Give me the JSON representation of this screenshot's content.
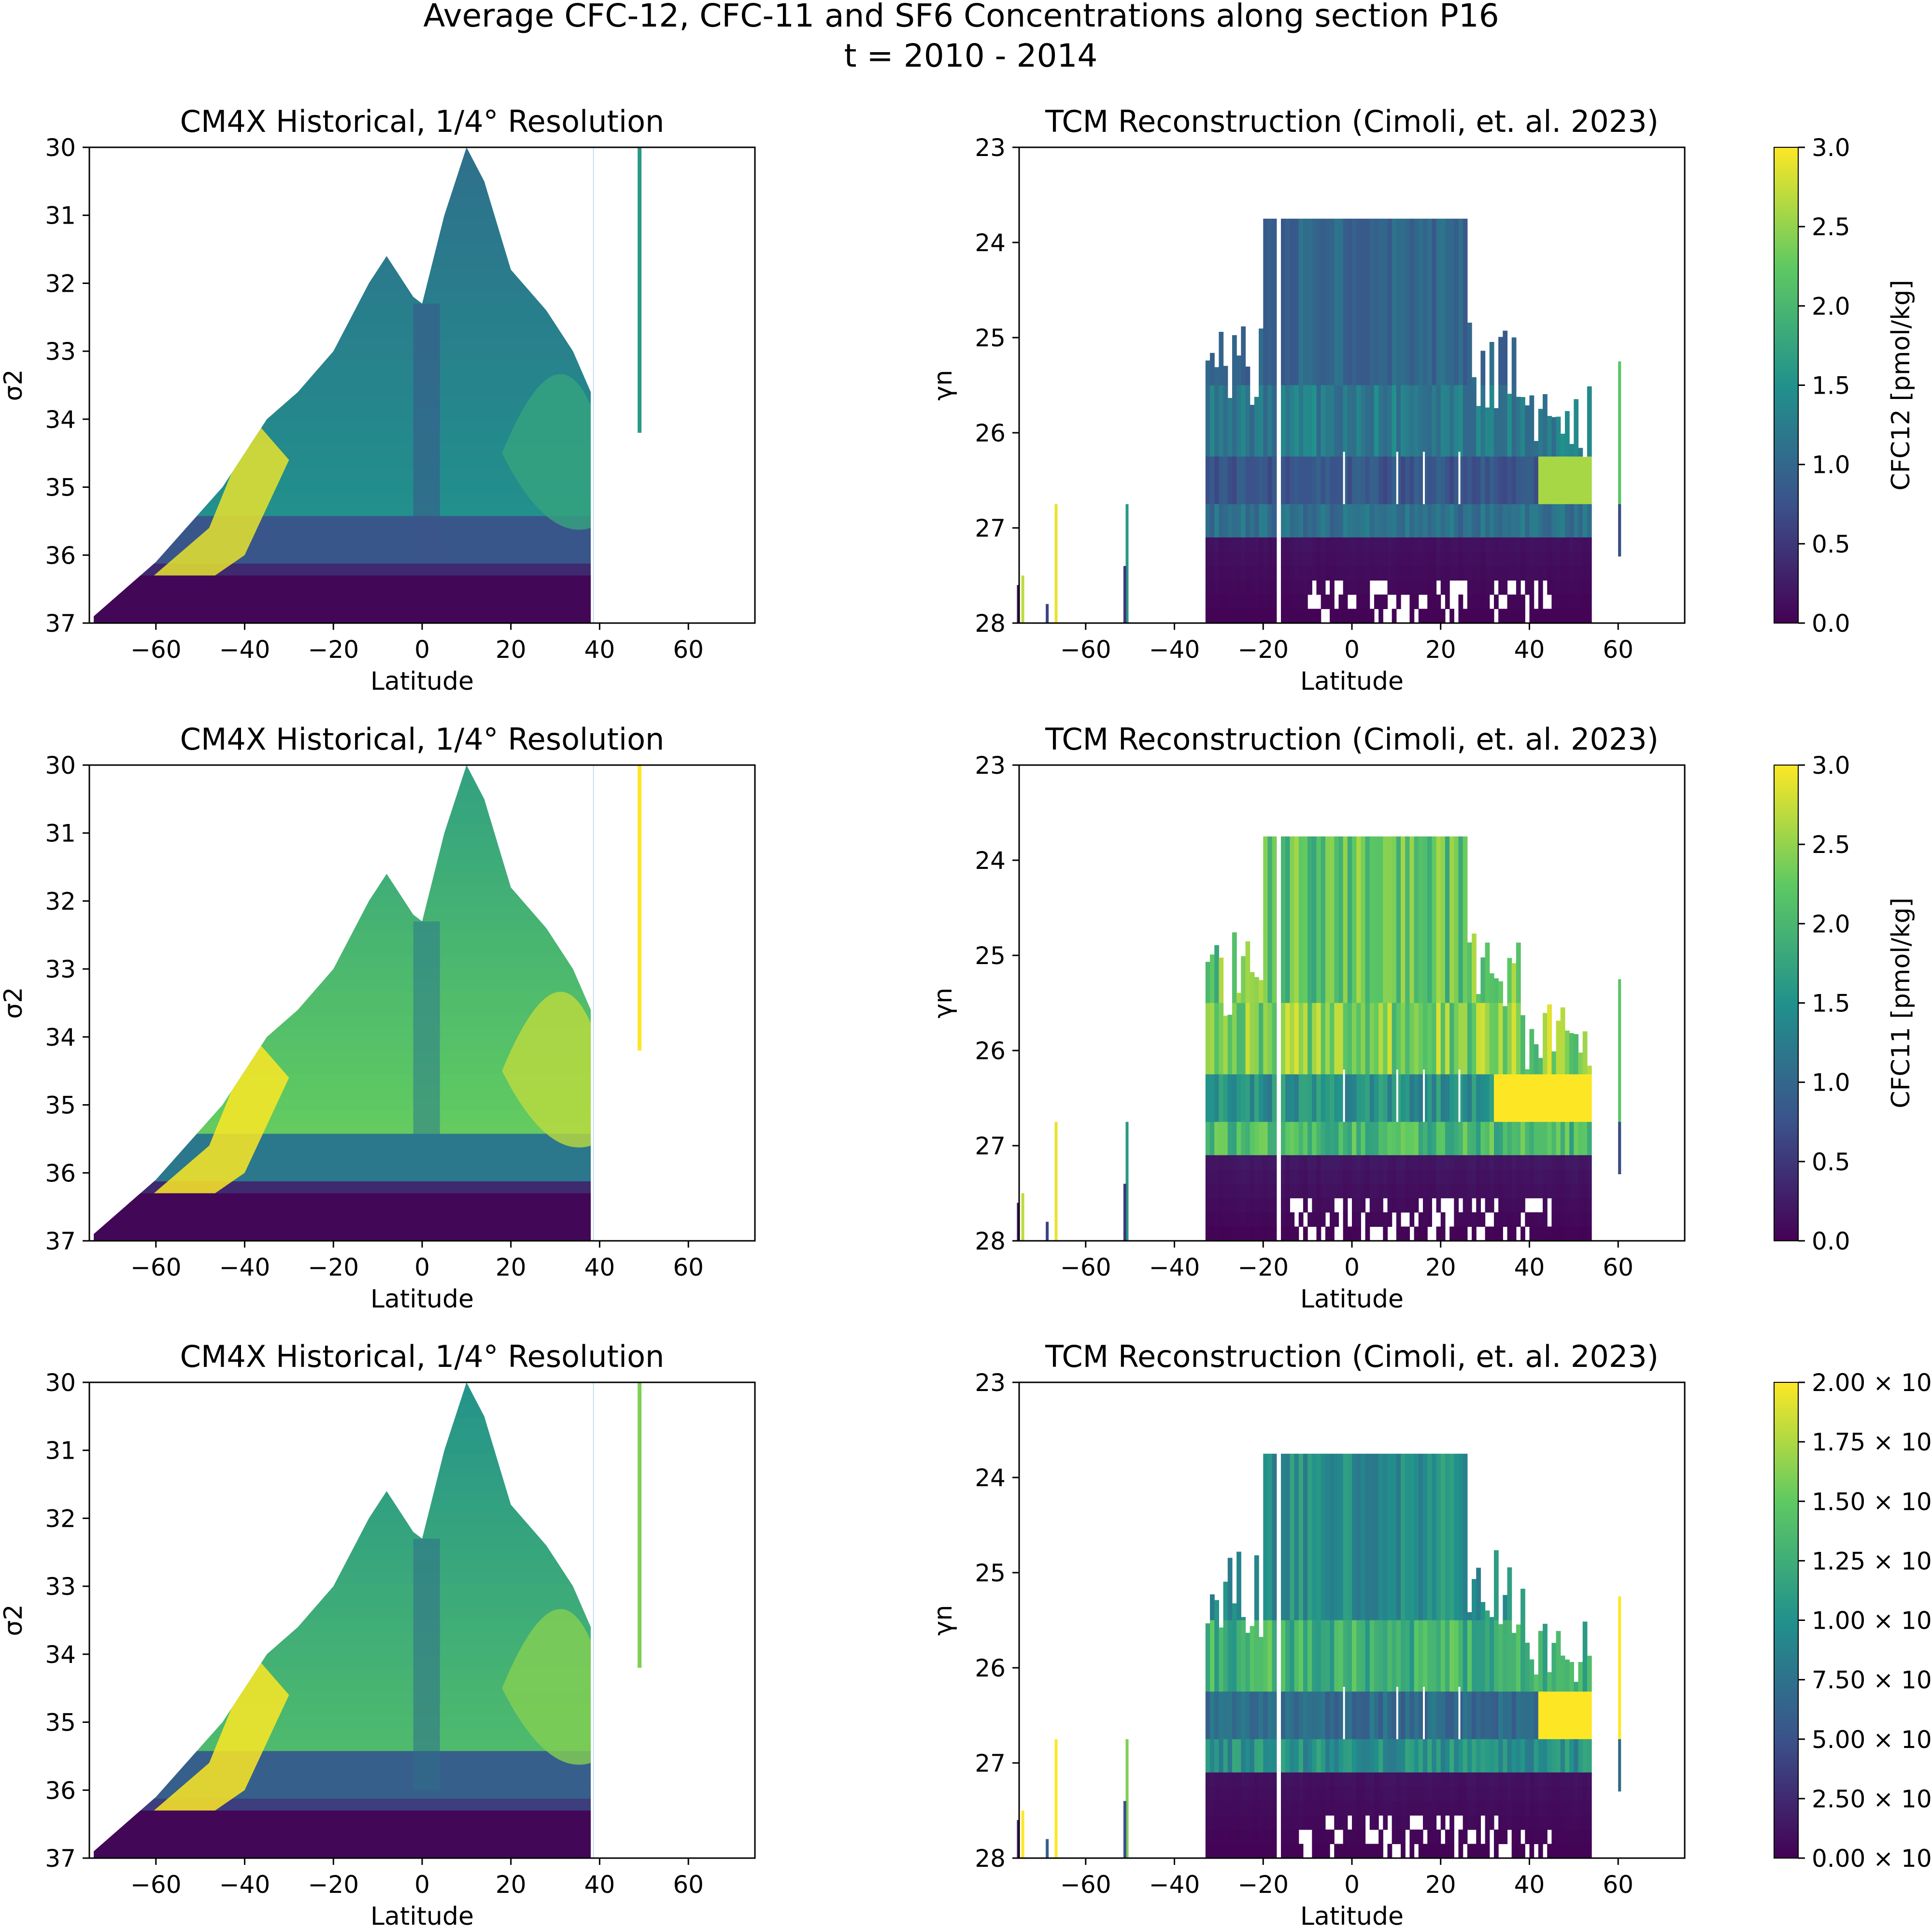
{
  "figure": {
    "title": "Average CFC-12, CFC-11 and SF6 Concentrations along section P16",
    "subtitle": "t = 2010 - 2014",
    "colormap": "viridis",
    "colormap_stops": [
      "#440154",
      "#3b528b",
      "#21918c",
      "#5ec962",
      "#fde725"
    ]
  },
  "chart_data": [
    {
      "id": "cfc12-model",
      "type": "heatmap",
      "title": "CM4X Historical, 1/4° Resolution",
      "xlabel": "Latitude",
      "ylabel": "σ2",
      "xlim": [
        -75,
        75
      ],
      "ylim": [
        37,
        30
      ],
      "xticks": [
        "−60",
        "−40",
        "−20",
        "0",
        "20",
        "40",
        "60"
      ],
      "yticks": [
        "30",
        "31",
        "32",
        "33",
        "34",
        "35",
        "36",
        "37"
      ],
      "tracer": "CFC-12",
      "surface_profile": [
        [
          -74,
          36.9
        ],
        [
          -60,
          36.1
        ],
        [
          -45,
          35.0
        ],
        [
          -35,
          34.0
        ],
        [
          -28,
          33.6
        ],
        [
          -20,
          33.0
        ],
        [
          -12,
          32.0
        ],
        [
          -8,
          31.6
        ],
        [
          -2,
          32.2
        ],
        [
          0,
          32.3
        ],
        [
          5,
          31.0
        ],
        [
          10,
          30.0
        ],
        [
          14,
          30.5
        ],
        [
          20,
          31.8
        ],
        [
          28,
          32.4
        ],
        [
          34,
          33.0
        ],
        [
          38,
          33.6
        ]
      ],
      "levels": [
        {
          "max_sigma": 35.5,
          "value": 1.3
        },
        {
          "max_sigma": 36.2,
          "value": 0.8
        },
        {
          "max_sigma": 37.0,
          "value": 0.1
        }
      ],
      "southern_max": 2.9,
      "extra_column": {
        "lat": 49,
        "sigma_range": [
          30,
          34.2
        ],
        "value": 1.6
      }
    },
    {
      "id": "cfc12-obs",
      "type": "heatmap",
      "title": "TCM Reconstruction (Cimoli, et. al. 2023)",
      "xlabel": "Latitude",
      "ylabel": "γn",
      "xlim": [
        -75,
        75
      ],
      "ylim": [
        28,
        23
      ],
      "xticks": [
        "−60",
        "−40",
        "−20",
        "0",
        "20",
        "40",
        "60"
      ],
      "yticks": [
        "23",
        "24",
        "25",
        "26",
        "27",
        "28"
      ],
      "tracer": "CFC-12",
      "lat_range": [
        -33,
        54
      ],
      "layers": [
        {
          "gamma": [
            23.75,
            25.5
          ],
          "value": 1.0
        },
        {
          "gamma": [
            25.5,
            26.25
          ],
          "value": 1.25
        },
        {
          "gamma": [
            26.25,
            26.75
          ],
          "value": 0.8
        },
        {
          "gamma": [
            26.75,
            27.1
          ],
          "value": 1.1
        },
        {
          "gamma": [
            27.1,
            28.0
          ],
          "value": 0.15
        }
      ],
      "hot_patch": {
        "lat": [
          42,
          54
        ],
        "gamma": [
          26.25,
          26.75
        ],
        "value": 2.6
      }
    },
    {
      "id": "cfc12-colorbar",
      "type": "colorbar",
      "label": "CFC12 [pmol/kg]",
      "range": [
        0,
        3.0
      ],
      "ticks": [
        "0.0",
        "0.5",
        "1.0",
        "1.5",
        "2.0",
        "2.5",
        "3.0"
      ]
    },
    {
      "id": "cfc11-model",
      "type": "heatmap",
      "title": "CM4X Historical, 1/4° Resolution",
      "xlabel": "Latitude",
      "ylabel": "σ2",
      "xlim": [
        -75,
        75
      ],
      "ylim": [
        37,
        30
      ],
      "xticks": [
        "−60",
        "−40",
        "−20",
        "0",
        "20",
        "40",
        "60"
      ],
      "yticks": [
        "30",
        "31",
        "32",
        "33",
        "34",
        "35",
        "36",
        "37"
      ],
      "tracer": "CFC-11",
      "surface_profile": [
        [
          -74,
          36.9
        ],
        [
          -60,
          36.1
        ],
        [
          -45,
          35.0
        ],
        [
          -35,
          34.0
        ],
        [
          -28,
          33.6
        ],
        [
          -20,
          33.0
        ],
        [
          -12,
          32.0
        ],
        [
          -8,
          31.6
        ],
        [
          -2,
          32.2
        ],
        [
          0,
          32.3
        ],
        [
          5,
          31.0
        ],
        [
          10,
          30.0
        ],
        [
          14,
          30.5
        ],
        [
          20,
          31.8
        ],
        [
          28,
          32.4
        ],
        [
          34,
          33.0
        ],
        [
          38,
          33.6
        ]
      ],
      "levels": [
        {
          "max_sigma": 35.5,
          "value": 2.0
        },
        {
          "max_sigma": 36.2,
          "value": 1.2
        },
        {
          "max_sigma": 37.0,
          "value": 0.1
        }
      ],
      "southern_max": 3.0,
      "extra_column": {
        "lat": 49,
        "sigma_range": [
          30,
          34.2
        ],
        "value": 3.0
      }
    },
    {
      "id": "cfc11-obs",
      "type": "heatmap",
      "title": "TCM Reconstruction (Cimoli, et. al. 2023)",
      "xlabel": "Latitude",
      "ylabel": "γn",
      "xlim": [
        -75,
        75
      ],
      "ylim": [
        28,
        23
      ],
      "xticks": [
        "−60",
        "−40",
        "−20",
        "0",
        "20",
        "40",
        "60"
      ],
      "yticks": [
        "23",
        "24",
        "25",
        "26",
        "27",
        "28"
      ],
      "tracer": "CFC-11",
      "lat_range": [
        -33,
        54
      ],
      "layers": [
        {
          "gamma": [
            23.75,
            25.5
          ],
          "value": 2.2
        },
        {
          "gamma": [
            25.5,
            26.25
          ],
          "value": 2.4
        },
        {
          "gamma": [
            26.25,
            26.75
          ],
          "value": 1.5
        },
        {
          "gamma": [
            26.75,
            27.1
          ],
          "value": 2.0
        },
        {
          "gamma": [
            27.1,
            28.0
          ],
          "value": 0.2
        }
      ],
      "hot_patch": {
        "lat": [
          32,
          54
        ],
        "gamma": [
          26.25,
          26.75
        ],
        "value": 3.0
      }
    },
    {
      "id": "cfc11-colorbar",
      "type": "colorbar",
      "label": "CFC11 [pmol/kg]",
      "range": [
        0,
        3.0
      ],
      "ticks": [
        "0.0",
        "0.5",
        "1.0",
        "1.5",
        "2.0",
        "2.5",
        "3.0"
      ]
    },
    {
      "id": "sf6-model",
      "type": "heatmap",
      "title": "CM4X Historical, 1/4° Resolution",
      "xlabel": "Latitude",
      "ylabel": "σ2",
      "xlim": [
        -75,
        75
      ],
      "ylim": [
        37,
        30
      ],
      "xticks": [
        "−60",
        "−40",
        "−20",
        "0",
        "20",
        "40",
        "60"
      ],
      "yticks": [
        "30",
        "31",
        "32",
        "33",
        "34",
        "35",
        "36",
        "37"
      ],
      "tracer": "SF6",
      "surface_profile": [
        [
          -74,
          36.9
        ],
        [
          -60,
          36.1
        ],
        [
          -45,
          35.0
        ],
        [
          -35,
          34.0
        ],
        [
          -28,
          33.6
        ],
        [
          -20,
          33.0
        ],
        [
          -12,
          32.0
        ],
        [
          -8,
          31.6
        ],
        [
          -2,
          32.2
        ],
        [
          0,
          32.3
        ],
        [
          5,
          31.0
        ],
        [
          10,
          30.0
        ],
        [
          14,
          30.5
        ],
        [
          20,
          31.8
        ],
        [
          28,
          32.4
        ],
        [
          34,
          33.0
        ],
        [
          38,
          33.6
        ]
      ],
      "levels": [
        {
          "max_sigma": 35.5,
          "value": 1.2
        },
        {
          "max_sigma": 36.2,
          "value": 0.6
        },
        {
          "max_sigma": 37.0,
          "value": 0.1
        }
      ],
      "southern_max": 2.9,
      "extra_column": {
        "lat": 49,
        "sigma_range": [
          30,
          34.2
        ],
        "value": 1.6
      }
    },
    {
      "id": "sf6-obs",
      "type": "heatmap",
      "title": "TCM Reconstruction (Cimoli, et. al. 2023)",
      "xlabel": "Latitude",
      "ylabel": "γn",
      "xlim": [
        -75,
        75
      ],
      "ylim": [
        28,
        23
      ],
      "xticks": [
        "−60",
        "−40",
        "−20",
        "0",
        "20",
        "40",
        "60"
      ],
      "yticks": [
        "23",
        "24",
        "25",
        "26",
        "27",
        "28"
      ],
      "tracer": "SF6",
      "lat_range": [
        -33,
        54
      ],
      "layers": [
        {
          "gamma": [
            23.75,
            25.5
          ],
          "value": 1.0
        },
        {
          "gamma": [
            25.5,
            26.25
          ],
          "value": 1.3
        },
        {
          "gamma": [
            26.25,
            26.75
          ],
          "value": 0.7
        },
        {
          "gamma": [
            26.75,
            27.1
          ],
          "value": 1.0
        },
        {
          "gamma": [
            27.1,
            28.0
          ],
          "value": 0.1
        }
      ],
      "hot_patch": {
        "lat": [
          42,
          54
        ],
        "gamma": [
          26.25,
          26.75
        ],
        "value": 2.6
      }
    },
    {
      "id": "sf6-colorbar",
      "type": "colorbar",
      "label": "",
      "range": [
        0,
        2.0
      ],
      "ticks": [
        "0.00 × 10",
        "2.50 × 10",
        "5.00 × 10",
        "7.50 × 10",
        "1.00 × 10",
        "1.25 × 10",
        "1.50 × 10",
        "1.75 × 10",
        "2.00 × 10"
      ]
    }
  ]
}
